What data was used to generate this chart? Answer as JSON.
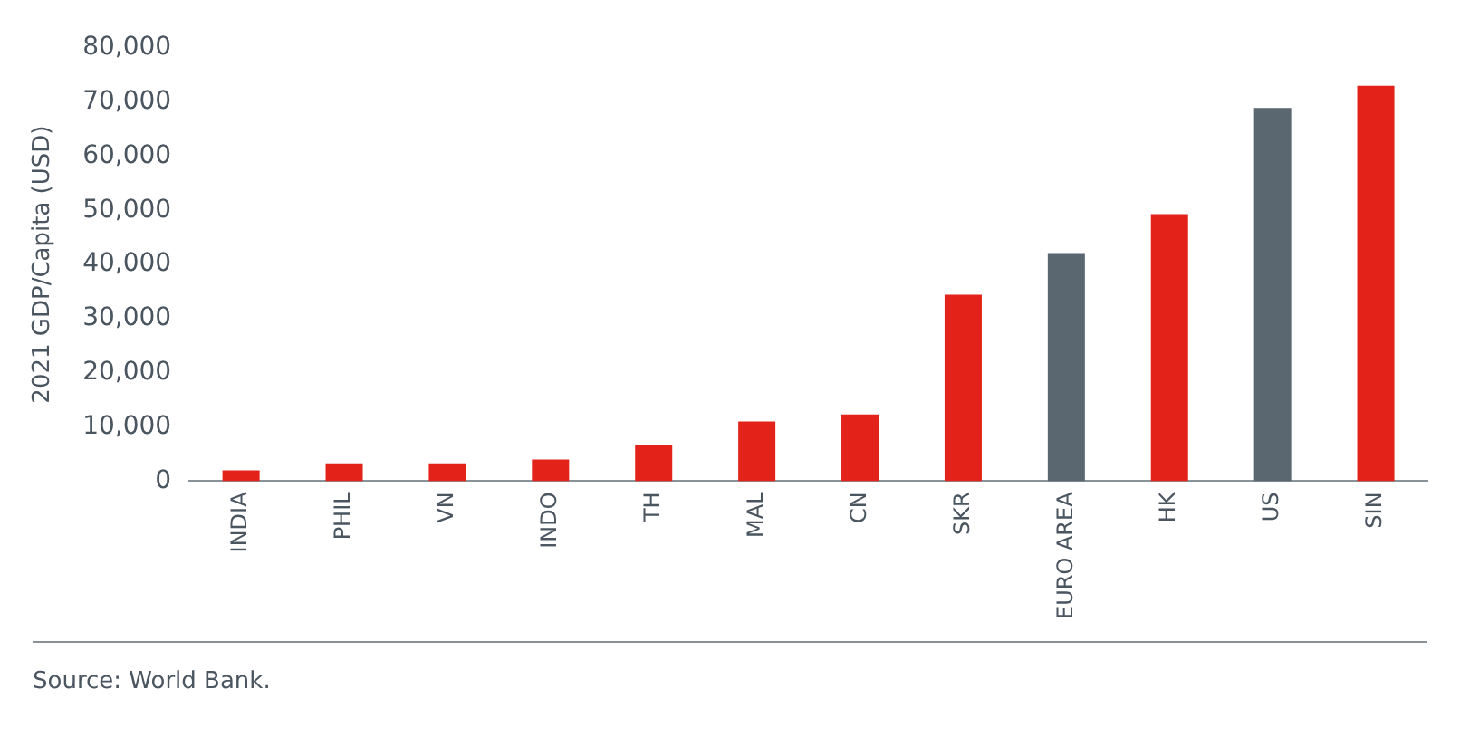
{
  "chart_data": {
    "type": "bar",
    "ylabel": "2021 GDP/Capita (USD)",
    "categories": [
      "INDIA",
      "PHIL",
      "VN",
      "INDO",
      "TH",
      "MAL",
      "CN",
      "SKR",
      "EURO AREA",
      "HK",
      "US",
      "SIN"
    ],
    "values": [
      2000,
      3300,
      3300,
      4000,
      6600,
      11000,
      12300,
      34400,
      42100,
      49300,
      68900,
      73000
    ],
    "colors": [
      "#e32219",
      "#e32219",
      "#e32219",
      "#e32219",
      "#e32219",
      "#e32219",
      "#e32219",
      "#e32219",
      "#5a6670",
      "#e32219",
      "#5a6670",
      "#e32219"
    ],
    "ylim": [
      0,
      80000
    ],
    "yticks": [
      0,
      {
        "value": 10000,
        "label": "10,000"
      },
      {
        "value": 20000,
        "label": "20,000"
      },
      {
        "value": 30000,
        "label": "30,000"
      },
      {
        "value": 40000,
        "label": "40,000"
      },
      {
        "value": 50000,
        "label": "50,000"
      },
      {
        "value": 60000,
        "label": "60,000"
      },
      {
        "value": 70000,
        "label": "70,000"
      },
      {
        "value": 80000,
        "label": "80,000"
      }
    ],
    "grid": false,
    "legend": false,
    "annotations": [
      "Source: World Bank."
    ]
  }
}
